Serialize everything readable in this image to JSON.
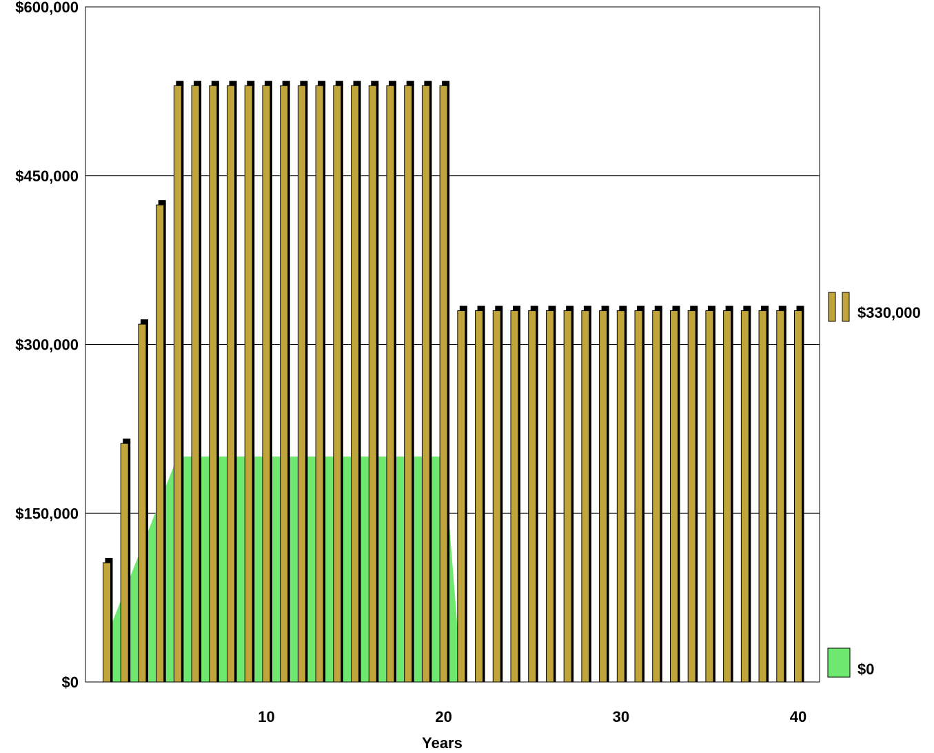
{
  "chart_data": {
    "type": "bar",
    "xlabel": "Years",
    "ylabel": "",
    "ylim": [
      0,
      600000
    ],
    "yticks": [
      "$0",
      "$150,000",
      "$300,000",
      "$450,000",
      "$600,000"
    ],
    "ytick_values": [
      0,
      150000,
      300000,
      450000,
      600000
    ],
    "xticks": [
      10,
      20,
      30,
      40
    ],
    "grid": true,
    "legend": {
      "placement": "right",
      "entries": [
        "$330,000",
        "$0"
      ]
    },
    "series": [
      {
        "kind": "bar",
        "color": "#bfa53b",
        "cap_color": "#000000",
        "x": [
          1,
          2,
          3,
          4,
          5,
          6,
          7,
          8,
          9,
          10,
          11,
          12,
          13,
          14,
          15,
          16,
          17,
          18,
          19,
          20,
          21,
          22,
          23,
          24,
          25,
          26,
          27,
          28,
          29,
          30,
          31,
          32,
          33,
          34,
          35,
          36,
          37,
          38,
          39,
          40
        ],
        "values": [
          106000,
          212000,
          318000,
          424000,
          530000,
          530000,
          530000,
          530000,
          530000,
          530000,
          530000,
          530000,
          530000,
          530000,
          530000,
          530000,
          530000,
          530000,
          530000,
          530000,
          330000,
          330000,
          330000,
          330000,
          330000,
          330000,
          330000,
          330000,
          330000,
          330000,
          330000,
          330000,
          330000,
          330000,
          330000,
          330000,
          330000,
          330000,
          330000,
          330000
        ]
      },
      {
        "kind": "area",
        "color": "#6ee86e",
        "x": [
          1,
          2,
          3,
          4,
          5,
          6,
          7,
          8,
          9,
          10,
          11,
          12,
          13,
          14,
          15,
          16,
          17,
          18,
          19,
          20,
          21,
          22,
          23,
          24,
          25,
          26,
          27,
          28,
          29,
          30,
          31,
          32,
          33,
          34,
          35,
          36,
          37,
          38,
          39,
          40
        ],
        "values": [
          40000,
          80000,
          120000,
          160000,
          200000,
          200000,
          200000,
          200000,
          200000,
          200000,
          200000,
          200000,
          200000,
          200000,
          200000,
          200000,
          200000,
          200000,
          200000,
          200000,
          0,
          0,
          0,
          0,
          0,
          0,
          0,
          0,
          0,
          0,
          0,
          0,
          0,
          0,
          0,
          0,
          0,
          0,
          0,
          0
        ]
      }
    ]
  }
}
